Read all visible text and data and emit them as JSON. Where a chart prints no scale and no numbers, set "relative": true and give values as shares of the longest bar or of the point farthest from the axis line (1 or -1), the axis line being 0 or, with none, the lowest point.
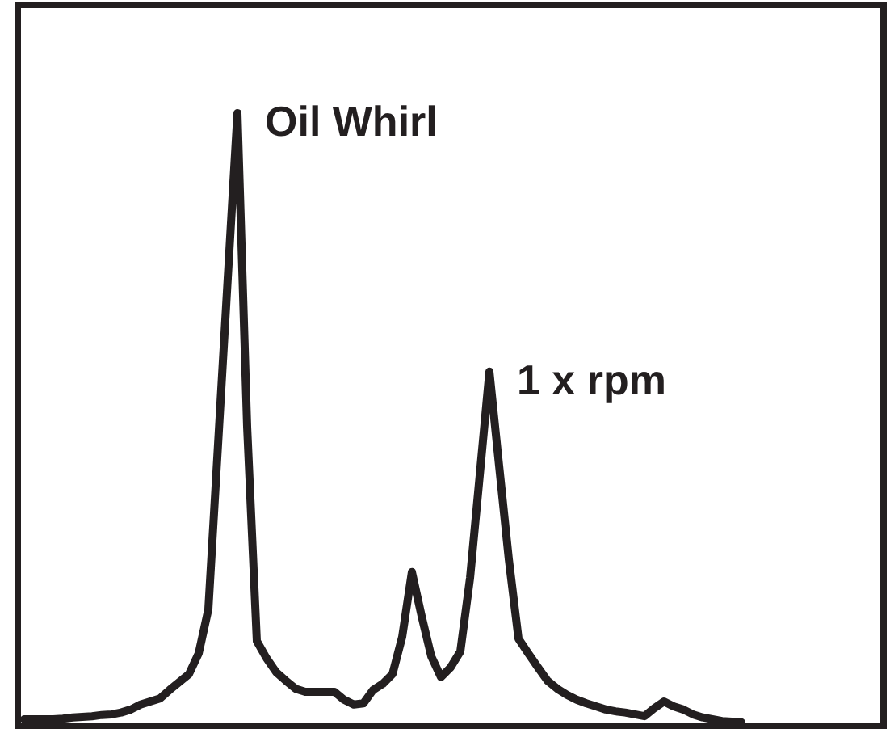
{
  "chart_data": {
    "type": "line",
    "relative": true,
    "categories": [
      null,
      null,
      null,
      null,
      null,
      null,
      null,
      null,
      null,
      null,
      null,
      null,
      null,
      null,
      null,
      null,
      null,
      null,
      null,
      null,
      null,
      null,
      null,
      null,
      null,
      null,
      null,
      null,
      null,
      null,
      null,
      null,
      null,
      null,
      null,
      null,
      null,
      null,
      null,
      null,
      null,
      null,
      null,
      null,
      null,
      null,
      null,
      null,
      null,
      null,
      null,
      null,
      null,
      null,
      null,
      null,
      null,
      null,
      null,
      null,
      null,
      null,
      null,
      null,
      null,
      null,
      null,
      null,
      null,
      null,
      null,
      null,
      null,
      null,
      null,
      null,
      null,
      null,
      null,
      null,
      null,
      null,
      null,
      null,
      null,
      null,
      null,
      null,
      null,
      null
    ],
    "series": [
      {
        "color": "#231f20",
        "values": [
          0.008,
          0.008,
          0.008,
          0.008,
          0.009,
          0.011,
          0.012,
          0.013,
          0.015,
          0.016,
          0.019,
          0.024,
          0.032,
          0.037,
          0.042,
          0.056,
          0.069,
          0.082,
          0.116,
          0.188,
          0.458,
          0.73,
          1.0,
          0.487,
          0.136,
          0.108,
          0.085,
          0.071,
          0.058,
          0.053,
          0.053,
          0.053,
          0.053,
          0.04,
          0.032,
          0.034,
          0.056,
          0.066,
          0.082,
          0.143,
          0.249,
          0.177,
          0.111,
          0.077,
          0.093,
          0.119,
          0.239,
          0.407,
          0.577,
          0.423,
          0.27,
          0.14,
          0.116,
          0.093,
          0.071,
          0.058,
          0.048,
          0.04,
          0.034,
          0.029,
          0.024,
          0.021,
          0.019,
          0.016,
          0.013,
          0.026,
          0.037,
          0.029,
          0.024,
          0.016,
          0.011,
          0.008,
          0.005,
          0.004,
          0.003,
          null,
          null,
          null,
          null,
          null,
          null,
          null,
          null,
          null,
          null,
          null,
          null,
          null,
          null,
          null
        ]
      }
    ],
    "annotations": [
      "Oil Whirl",
      "1 x rpm"
    ],
    "marker": "none",
    "line_style": "solid"
  }
}
